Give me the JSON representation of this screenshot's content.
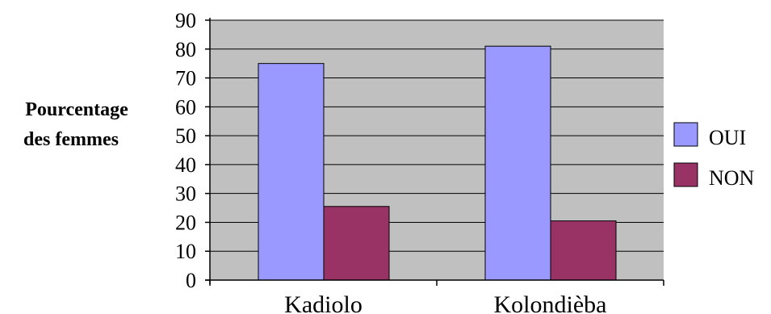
{
  "chart_data": {
    "type": "bar",
    "categories": [
      "Kadiolo",
      "Kolondièba"
    ],
    "series": [
      {
        "name": "OUI",
        "values": [
          75,
          81
        ],
        "color": "#9999ff"
      },
      {
        "name": "NON",
        "values": [
          25.5,
          20.5
        ],
        "color": "#993366"
      }
    ],
    "ylabel_lines": [
      "Pourcentage",
      "des femmes"
    ],
    "ylim": [
      0,
      90
    ],
    "yticks": [
      0,
      10,
      20,
      30,
      40,
      50,
      60,
      70,
      80,
      90
    ],
    "grid": true,
    "legend": "right",
    "plot_background": "#c0c0c0"
  }
}
